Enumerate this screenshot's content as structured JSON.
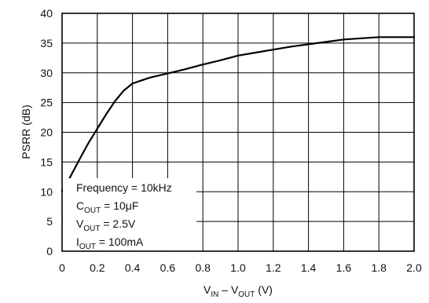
{
  "chart_data": {
    "type": "line",
    "xlabel": {
      "main": "V",
      "sub1": "IN",
      "mid": " – V",
      "sub2": "OUT",
      "unit": " (V)"
    },
    "ylabel": "PSRR (dB)",
    "xlim": [
      0,
      2.0
    ],
    "ylim": [
      0,
      40
    ],
    "x_ticks": [
      "0",
      "0.2",
      "0.4",
      "0.6",
      "0.8",
      "1.0",
      "1.2",
      "1.4",
      "1.6",
      "1.8",
      "2.0"
    ],
    "y_ticks": [
      "0",
      "5",
      "10",
      "15",
      "20",
      "25",
      "30",
      "35",
      "40"
    ],
    "grid": true,
    "series": [
      {
        "x": [
          0,
          0.05,
          0.1,
          0.15,
          0.2,
          0.25,
          0.3,
          0.35,
          0.4,
          0.45,
          0.5,
          0.6,
          0.7,
          0.8,
          0.9,
          1.0,
          1.1,
          1.2,
          1.3,
          1.4,
          1.5,
          1.6,
          1.7,
          1.8,
          1.9,
          2.0
        ],
        "y": [
          10.0,
          12.7,
          15.5,
          18.2,
          20.6,
          23.0,
          25.2,
          27.0,
          28.2,
          28.7,
          29.2,
          29.9,
          30.6,
          31.4,
          32.1,
          32.9,
          33.4,
          33.9,
          34.4,
          34.8,
          35.2,
          35.6,
          35.8,
          36.0,
          36.0,
          36.0
        ]
      }
    ],
    "annotations": [
      {
        "main": "Frequency = 10kHz",
        "sub": "",
        "tail": ""
      },
      {
        "main": "C",
        "sub": "OUT",
        "tail": " = 10μF"
      },
      {
        "main": "V",
        "sub": "OUT",
        "tail": " = 2.5V"
      },
      {
        "main": "I",
        "sub": "OUT",
        "tail": " = 100mA"
      }
    ]
  }
}
